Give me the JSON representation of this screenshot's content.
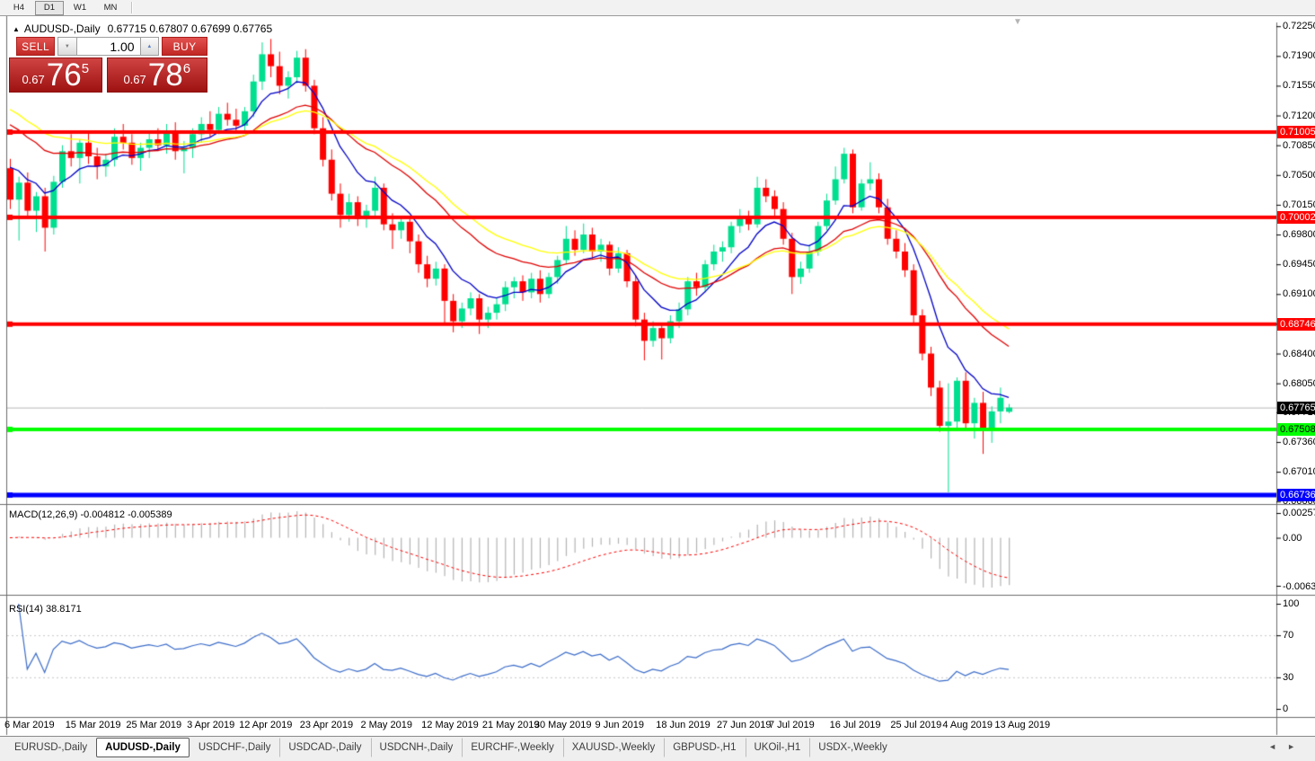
{
  "icons": {
    "collapse": "▲",
    "shift_marker": "▼",
    "spin_up": "▲",
    "spin_down": "▼",
    "scroll_left": "◄",
    "scroll_right": "►"
  },
  "toolbar": {
    "timeframes": [
      {
        "label": "H4",
        "active": false
      },
      {
        "label": "D1",
        "active": true
      },
      {
        "label": "W1",
        "active": false
      },
      {
        "label": "MN",
        "active": false
      }
    ]
  },
  "chart": {
    "title_symbol": "AUDUSD-,Daily",
    "title_ohlc": "0.67715 0.67807 0.67699 0.67765",
    "trade_panel": {
      "sell_label": "SELL",
      "buy_label": "BUY",
      "volume": "1.00",
      "sell_price": {
        "small": "0.67",
        "big": "76",
        "sup": "5"
      },
      "buy_price": {
        "small": "0.67",
        "big": "78",
        "sup": "6"
      }
    }
  },
  "panes": {
    "macd_label": "MACD(12,26,9) -0.004812 -0.005389",
    "rsi_label": "RSI(14) 38.8171"
  },
  "chart_data": {
    "type": "candlestick",
    "symbol": "AUDUSD",
    "timeframe": "Daily",
    "last_bar": {
      "open": 0.67715,
      "high": 0.67807,
      "low": 0.67699,
      "close": 0.67765
    },
    "up_color": "#00DF8F",
    "down_color": "#FF0000",
    "price_axis": {
      "top": 0.72294,
      "bottom": 0.66641
    },
    "y_ticks": [
      "0.72250",
      "0.71900",
      "0.71550",
      "0.71200",
      "0.70850",
      "0.70500",
      "0.70150",
      "0.69800",
      "0.69450",
      "0.69100",
      "0.68750",
      "0.68400",
      "0.68050",
      "0.67710",
      "0.67360",
      "0.67010",
      "0.66660"
    ],
    "x_ticks": [
      [
        0,
        "6 Mar 2019"
      ],
      [
        7,
        "15 Mar 2019"
      ],
      [
        14,
        "25 Mar 2019"
      ],
      [
        21,
        "3 Apr 2019"
      ],
      [
        27,
        "12 Apr 2019"
      ],
      [
        34,
        "23 Apr 2019"
      ],
      [
        41,
        "2 May 2019"
      ],
      [
        48,
        "12 May 2019"
      ],
      [
        55,
        "21 May 2019"
      ],
      [
        61,
        "30 May 2019"
      ],
      [
        68,
        "9 Jun 2019"
      ],
      [
        75,
        "18 Jun 2019"
      ],
      [
        82,
        "27 Jun 2019"
      ],
      [
        88,
        "7 Jul 2019"
      ],
      [
        95,
        "16 Jul 2019"
      ],
      [
        102,
        "25 Jul 2019"
      ],
      [
        108,
        "4 Aug 2019"
      ],
      [
        114,
        "13 Aug 2019"
      ]
    ],
    "hlines": [
      {
        "price": 0.71005,
        "label": "0.71005",
        "color": "#FF0000",
        "text": "#FFFFFF",
        "width": 4
      },
      {
        "price": 0.70002,
        "label": "0.70002",
        "color": "#FF0000",
        "text": "#FFFFFF",
        "width": 4
      },
      {
        "price": 0.68746,
        "label": "0.68746",
        "color": "#FF0000",
        "text": "#FFFFFF",
        "width": 4
      },
      {
        "price": 0.67508,
        "label": "0.67508",
        "color": "#00FF00",
        "text": "#000000",
        "width": 4
      },
      {
        "price": 0.66736,
        "label": "0.66736",
        "color": "#0000FF",
        "text": "#FFFFFF",
        "width": 5
      }
    ],
    "current_price": {
      "value": 0.67765,
      "label": "0.67765",
      "line_color": "#b8b8b8",
      "badge_bg": "#000000",
      "badge_text": "#FFFFFF"
    },
    "overlays": [
      {
        "name": "ma-fast",
        "type": "ema",
        "period": 8,
        "color": "#0000C8",
        "seed": 0.707
      },
      {
        "name": "ma-mid",
        "type": "ema",
        "period": 21,
        "color": "#E00000",
        "seed": 0.7118
      },
      {
        "name": "ma-slow",
        "type": "ema",
        "period": 28,
        "color": "#FFFF00",
        "seed": 0.7135
      }
    ],
    "macd": {
      "params": [
        12,
        26,
        9
      ],
      "value": -0.004812,
      "signal": -0.005389,
      "hist_color": "#b4b4b4",
      "signal_color": "#FF0000",
      "scale": [
        "0.002574",
        "0.00",
        "-0.006326"
      ]
    },
    "rsi": {
      "period": 14,
      "value": 38.8171,
      "color": "#3b6cc9",
      "levels": [
        70,
        30
      ],
      "scale": [
        "100",
        "70",
        "30",
        "0"
      ],
      "level_color": "#c8c8c8"
    },
    "candles": [
      [
        0.7058,
        0.7069,
        0.701,
        0.7021
      ],
      [
        0.7021,
        0.7048,
        0.6973,
        0.7041
      ],
      [
        0.7041,
        0.7053,
        0.6999,
        0.7008
      ],
      [
        0.7008,
        0.703,
        0.6983,
        0.7025
      ],
      [
        0.7025,
        0.7035,
        0.696,
        0.6988
      ],
      [
        0.6988,
        0.7049,
        0.698,
        0.7042
      ],
      [
        0.7042,
        0.7085,
        0.7035,
        0.7078
      ],
      [
        0.7078,
        0.7098,
        0.706,
        0.707
      ],
      [
        0.707,
        0.7092,
        0.704,
        0.7088
      ],
      [
        0.7088,
        0.71,
        0.7063,
        0.7072
      ],
      [
        0.7072,
        0.7082,
        0.7045,
        0.706
      ],
      [
        0.706,
        0.7075,
        0.7048,
        0.7068
      ],
      [
        0.7068,
        0.7105,
        0.706,
        0.7095
      ],
      [
        0.7095,
        0.711,
        0.708,
        0.7088
      ],
      [
        0.7088,
        0.7098,
        0.7062,
        0.707
      ],
      [
        0.707,
        0.7088,
        0.7055,
        0.7082
      ],
      [
        0.7082,
        0.7099,
        0.707,
        0.7092
      ],
      [
        0.7092,
        0.7105,
        0.7078,
        0.7085
      ],
      [
        0.7085,
        0.711,
        0.7075,
        0.71
      ],
      [
        0.71,
        0.7112,
        0.7068,
        0.7078
      ],
      [
        0.7078,
        0.709,
        0.7052,
        0.7082
      ],
      [
        0.7082,
        0.7105,
        0.707,
        0.7098
      ],
      [
        0.7098,
        0.7118,
        0.7088,
        0.711
      ],
      [
        0.711,
        0.7125,
        0.7095,
        0.7103
      ],
      [
        0.7103,
        0.713,
        0.7098,
        0.7122
      ],
      [
        0.7122,
        0.7135,
        0.7108,
        0.7115
      ],
      [
        0.7115,
        0.7128,
        0.71,
        0.7108
      ],
      [
        0.7108,
        0.713,
        0.7102,
        0.7125
      ],
      [
        0.7125,
        0.7168,
        0.7118,
        0.716
      ],
      [
        0.716,
        0.7206,
        0.715,
        0.7192
      ],
      [
        0.7192,
        0.721,
        0.7165,
        0.7178
      ],
      [
        0.7178,
        0.7195,
        0.7145,
        0.7155
      ],
      [
        0.7155,
        0.7172,
        0.714,
        0.7165
      ],
      [
        0.7165,
        0.7196,
        0.7158,
        0.7188
      ],
      [
        0.7188,
        0.7198,
        0.7148,
        0.7155
      ],
      [
        0.7155,
        0.7162,
        0.7098,
        0.7105
      ],
      [
        0.7105,
        0.7118,
        0.706,
        0.7068
      ],
      [
        0.7068,
        0.708,
        0.702,
        0.7028
      ],
      [
        0.7028,
        0.704,
        0.6988,
        0.7003
      ],
      [
        0.7003,
        0.7028,
        0.6995,
        0.7018
      ],
      [
        0.7018,
        0.7025,
        0.699,
        0.6998
      ],
      [
        0.6998,
        0.7015,
        0.6988,
        0.7008
      ],
      [
        0.7008,
        0.7048,
        0.7,
        0.7035
      ],
      [
        0.7035,
        0.704,
        0.6985,
        0.6992
      ],
      [
        0.6992,
        0.7005,
        0.6963,
        0.6985
      ],
      [
        0.6985,
        0.7002,
        0.6975,
        0.6995
      ],
      [
        0.6995,
        0.7,
        0.6958,
        0.6972
      ],
      [
        0.6972,
        0.698,
        0.6935,
        0.6945
      ],
      [
        0.6945,
        0.6955,
        0.6918,
        0.6928
      ],
      [
        0.6928,
        0.6948,
        0.692,
        0.694
      ],
      [
        0.694,
        0.6945,
        0.6875,
        0.6902
      ],
      [
        0.6902,
        0.691,
        0.6865,
        0.6878
      ],
      [
        0.6878,
        0.69,
        0.687,
        0.6893
      ],
      [
        0.6893,
        0.6912,
        0.6885,
        0.6905
      ],
      [
        0.6905,
        0.691,
        0.6863,
        0.688
      ],
      [
        0.688,
        0.6895,
        0.687,
        0.6888
      ],
      [
        0.6888,
        0.6905,
        0.688,
        0.6898
      ],
      [
        0.6898,
        0.6925,
        0.689,
        0.6918
      ],
      [
        0.6918,
        0.693,
        0.6905,
        0.6925
      ],
      [
        0.6925,
        0.6932,
        0.6902,
        0.6912
      ],
      [
        0.6912,
        0.6935,
        0.6905,
        0.6928
      ],
      [
        0.6928,
        0.6938,
        0.69,
        0.691
      ],
      [
        0.691,
        0.6935,
        0.6905,
        0.693
      ],
      [
        0.693,
        0.6955,
        0.6922,
        0.695
      ],
      [
        0.695,
        0.699,
        0.6945,
        0.6975
      ],
      [
        0.6975,
        0.6985,
        0.6955,
        0.6962
      ],
      [
        0.6962,
        0.6993,
        0.6958,
        0.698
      ],
      [
        0.698,
        0.6988,
        0.6952,
        0.696
      ],
      [
        0.696,
        0.6975,
        0.6948,
        0.6968
      ],
      [
        0.6968,
        0.6972,
        0.6932,
        0.694
      ],
      [
        0.694,
        0.6965,
        0.6935,
        0.6958
      ],
      [
        0.6958,
        0.6962,
        0.6918,
        0.6925
      ],
      [
        0.6925,
        0.6932,
        0.6872,
        0.688
      ],
      [
        0.688,
        0.6888,
        0.6832,
        0.6855
      ],
      [
        0.6855,
        0.6878,
        0.6848,
        0.687
      ],
      [
        0.687,
        0.6875,
        0.6833,
        0.6858
      ],
      [
        0.6858,
        0.6885,
        0.6852,
        0.6878
      ],
      [
        0.6878,
        0.69,
        0.687,
        0.6892
      ],
      [
        0.6892,
        0.693,
        0.6885,
        0.6925
      ],
      [
        0.6925,
        0.6935,
        0.6908,
        0.6918
      ],
      [
        0.6918,
        0.695,
        0.6912,
        0.6945
      ],
      [
        0.6945,
        0.6968,
        0.6938,
        0.696
      ],
      [
        0.696,
        0.6972,
        0.6948,
        0.6965
      ],
      [
        0.6965,
        0.6995,
        0.6958,
        0.699
      ],
      [
        0.699,
        0.701,
        0.6982,
        0.7
      ],
      [
        0.7,
        0.7008,
        0.6985,
        0.6992
      ],
      [
        0.6992,
        0.7048,
        0.6988,
        0.7035
      ],
      [
        0.7035,
        0.7045,
        0.7018,
        0.7025
      ],
      [
        0.7025,
        0.7032,
        0.7002,
        0.701
      ],
      [
        0.701,
        0.7018,
        0.6968,
        0.6975
      ],
      [
        0.6975,
        0.6982,
        0.691,
        0.693
      ],
      [
        0.693,
        0.6948,
        0.6922,
        0.694
      ],
      [
        0.694,
        0.6968,
        0.6935,
        0.696
      ],
      [
        0.696,
        0.6995,
        0.6955,
        0.699
      ],
      [
        0.699,
        0.7028,
        0.6985,
        0.702
      ],
      [
        0.702,
        0.706,
        0.7015,
        0.7045
      ],
      [
        0.7045,
        0.7082,
        0.704,
        0.7075
      ],
      [
        0.7075,
        0.708,
        0.7005,
        0.7012
      ],
      [
        0.7012,
        0.7045,
        0.7008,
        0.704
      ],
      [
        0.704,
        0.7065,
        0.7032,
        0.7045
      ],
      [
        0.7045,
        0.7052,
        0.7005,
        0.7012
      ],
      [
        0.7012,
        0.7022,
        0.6968,
        0.6975
      ],
      [
        0.6975,
        0.6985,
        0.6952,
        0.696
      ],
      [
        0.696,
        0.697,
        0.693,
        0.6938
      ],
      [
        0.6938,
        0.6945,
        0.6875,
        0.6885
      ],
      [
        0.6885,
        0.6892,
        0.6832,
        0.684
      ],
      [
        0.684,
        0.6848,
        0.679,
        0.68
      ],
      [
        0.68,
        0.6808,
        0.6748,
        0.6755
      ],
      [
        0.6755,
        0.6805,
        0.6677,
        0.676
      ],
      [
        0.676,
        0.6812,
        0.6752,
        0.6808
      ],
      [
        0.6808,
        0.6818,
        0.6752,
        0.6758
      ],
      [
        0.6758,
        0.6788,
        0.674,
        0.6782
      ],
      [
        0.6782,
        0.6795,
        0.6722,
        0.6752
      ],
      [
        0.6752,
        0.6778,
        0.6735,
        0.6772
      ],
      [
        0.6772,
        0.68,
        0.6758,
        0.6788
      ],
      [
        0.67715,
        0.67807,
        0.67699,
        0.67765
      ]
    ]
  },
  "tabs": {
    "active_index": 1,
    "items": [
      "EURUSD-,Daily",
      "AUDUSD-,Daily",
      "USDCHF-,Daily",
      "USDCAD-,Daily",
      "USDCNH-,Daily",
      "EURCHF-,Weekly",
      "XAUUSD-,Weekly",
      "GBPUSD-,H1",
      "UKOil-,H1",
      "USDX-,Weekly"
    ]
  }
}
